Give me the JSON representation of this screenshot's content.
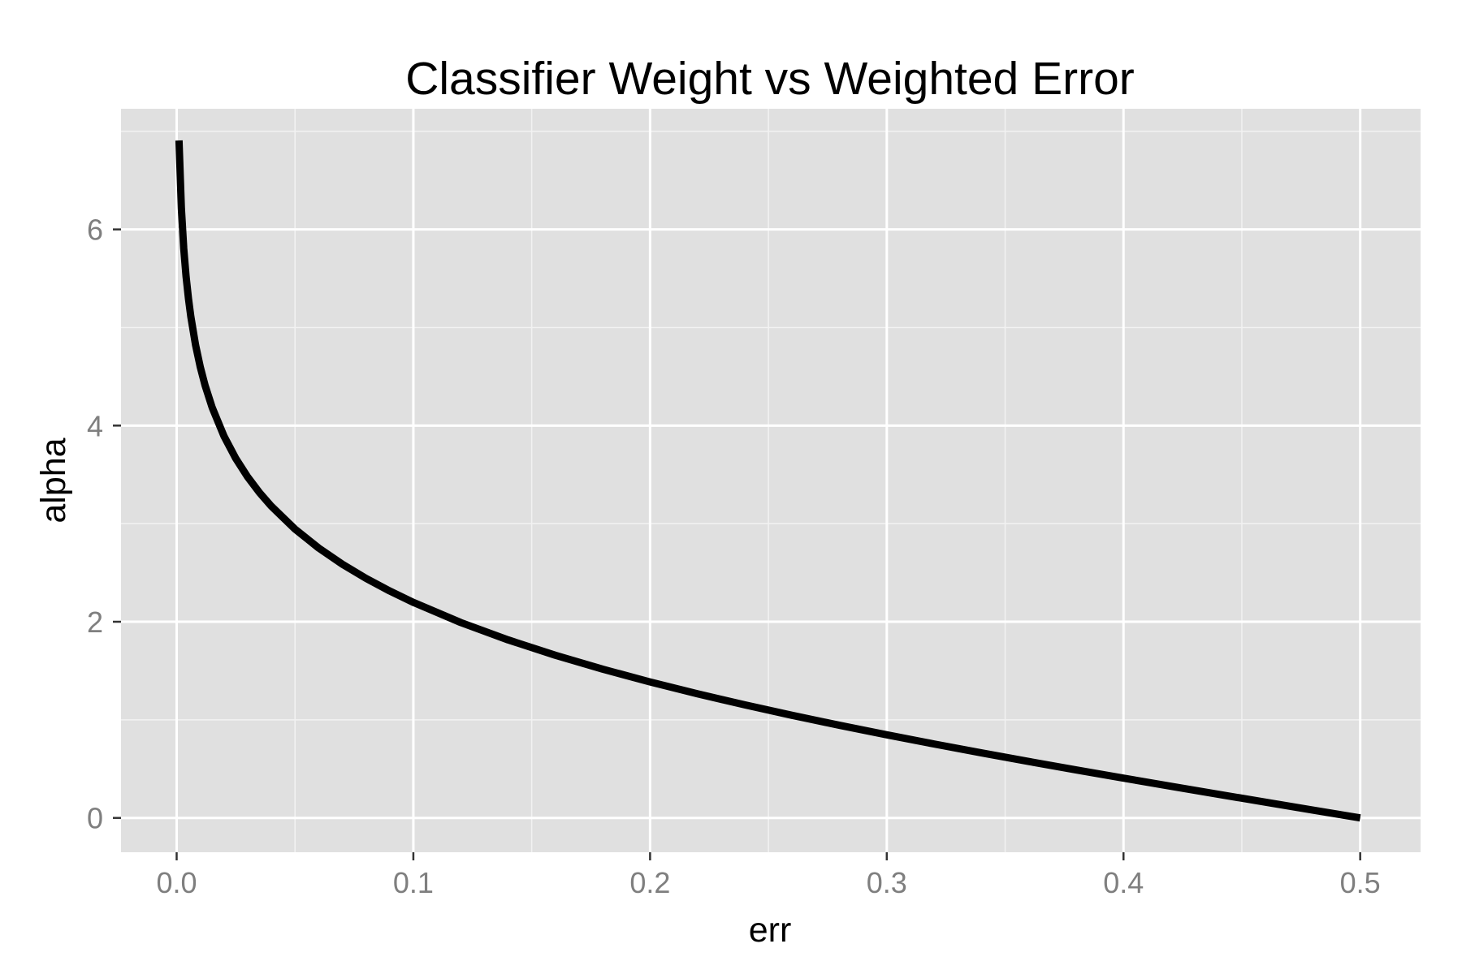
{
  "chart_data": {
    "type": "line",
    "title": "Classifier Weight vs Weighted Error",
    "xlabel": "err",
    "ylabel": "alpha",
    "xlim": [
      -0.0235,
      0.5255
    ],
    "ylim": [
      -0.35,
      7.23
    ],
    "x_ticks": [
      0.0,
      0.1,
      0.2,
      0.3,
      0.4,
      0.5
    ],
    "x_tick_labels": [
      "0.0",
      "0.1",
      "0.2",
      "0.3",
      "0.4",
      "0.5"
    ],
    "y_ticks": [
      0,
      2,
      4,
      6
    ],
    "y_tick_labels": [
      "0",
      "2",
      "4",
      "6"
    ],
    "x_minor_ticks": [
      0.05,
      0.15,
      0.25,
      0.35,
      0.45
    ],
    "y_minor_ticks": [
      1,
      3,
      5,
      7
    ],
    "grid": true,
    "legend": "none",
    "colors": {
      "panel_background": "#e0e0e0",
      "grid_major": "#ffffff",
      "grid_minor": "#f2f2f2",
      "line": "#000000",
      "tick_label": "#7f7f7f"
    },
    "series": [
      {
        "x": [
          0.001,
          0.002,
          0.003,
          0.004,
          0.005,
          0.006,
          0.008,
          0.01,
          0.012,
          0.015,
          0.02,
          0.025,
          0.03,
          0.035,
          0.04,
          0.05,
          0.06,
          0.07,
          0.08,
          0.09,
          0.1,
          0.12,
          0.14,
          0.16,
          0.18,
          0.2,
          0.22,
          0.24,
          0.26,
          0.28,
          0.3,
          0.32,
          0.34,
          0.36,
          0.38,
          0.4,
          0.42,
          0.44,
          0.46,
          0.48,
          0.5
        ],
        "values": [
          6.906755,
          6.212606,
          5.805135,
          5.515429,
          5.293305,
          5.109183,
          4.820282,
          4.59512,
          4.410545,
          4.18459,
          3.89182,
          3.663562,
          3.476099,
          3.316624,
          3.178054,
          2.944439,
          2.751535,
          2.586689,
          2.442347,
          2.313635,
          2.197225,
          1.99243,
          1.81529,
          1.658228,
          1.516347,
          1.386294,
          1.265666,
          1.15268,
          1.045969,
          0.944462,
          0.847298,
          0.753772,
          0.663294,
          0.575364,
          0.489548,
          0.405465,
          0.322773,
          0.241162,
          0.160343,
          0.080043,
          0.0
        ]
      }
    ]
  }
}
